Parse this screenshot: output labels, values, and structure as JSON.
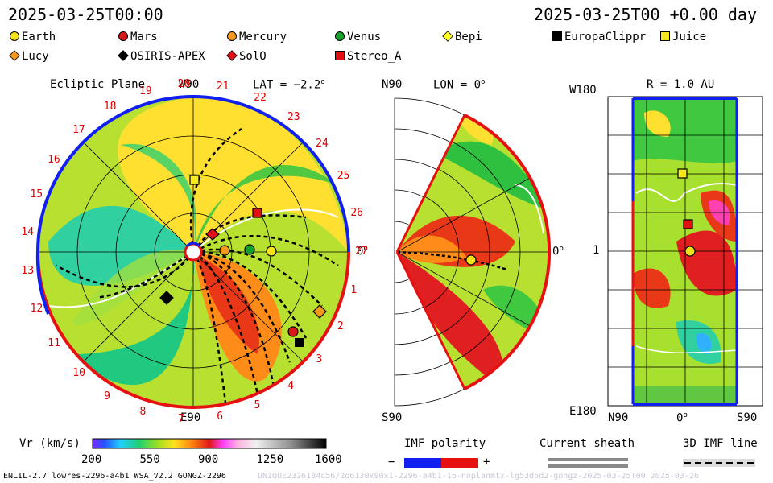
{
  "header": {
    "left_time": "2025-03-25T00:00",
    "right_time": "2025-03-25T00 +0.00 day"
  },
  "legend": [
    {
      "name": "Earth",
      "shape": "circle",
      "color": "#f6e21a"
    },
    {
      "name": "Mars",
      "shape": "circle",
      "color": "#d81818"
    },
    {
      "name": "Mercury",
      "shape": "circle",
      "color": "#f39a1c"
    },
    {
      "name": "Venus",
      "shape": "circle",
      "color": "#14a02a"
    },
    {
      "name": "Bepi",
      "shape": "diamond",
      "color": "#ffff22"
    },
    {
      "name": "EuropaClippr",
      "shape": "square",
      "color": "#000000"
    },
    {
      "name": "Juice",
      "shape": "square",
      "color": "#f8e820"
    },
    {
      "name": "Lucy",
      "shape": "diamond",
      "color": "#f39a1c"
    },
    {
      "name": "OSIRIS-APEX",
      "shape": "diamond",
      "color": "#000000"
    },
    {
      "name": "SolO",
      "shape": "diamond",
      "color": "#e0101a"
    },
    {
      "name": "Stereo_A",
      "shape": "square",
      "color": "#e01010"
    }
  ],
  "ecliptic": {
    "title": "Ecliptic Plane",
    "lat": "LAT = −2.2",
    "lat_deg": "o",
    "w90": "W90",
    "e90": "E90",
    "zero": "0",
    "zero_deg": "o",
    "carrington": [
      "1",
      "2",
      "3",
      "4",
      "5",
      "6",
      "7",
      "8",
      "9",
      "10",
      "11",
      "12",
      "13",
      "14",
      "15",
      "16",
      "17",
      "18",
      "19",
      "20",
      "21",
      "22",
      "23",
      "24",
      "25",
      "26",
      "27"
    ]
  },
  "meridional": {
    "n90": "N90",
    "s90": "S90",
    "lon": "LON = 0",
    "lon_deg": "o",
    "zero": "0",
    "zero_deg": "o"
  },
  "radial": {
    "title": "R = 1.0 AU",
    "w180": "W180",
    "e180": "E180",
    "one": "1",
    "n90": "N90",
    "zero": "0",
    "zero_deg": "o",
    "s90": "S90"
  },
  "colorbar": {
    "label": "Vr (km/s)",
    "ticks": [
      "200",
      "550",
      "900",
      "1250",
      "1600"
    ]
  },
  "polarity": {
    "title": "IMF polarity",
    "minus": "−",
    "plus": "+"
  },
  "sheath": {
    "title": "Current sheath"
  },
  "imf3d": {
    "title": "3D IMF line"
  },
  "footer": {
    "left": "ENLIL-2.7 lowres-2296-a4b1 WSA_V2.2 GONGZ-2296",
    "right": "UNIQUE2326184c56/2d6130x90x1-2296-a4b1-16-noplanmtx-lg53d5d2-gongz-2025-03-25T00    2025-03-26"
  },
  "colors": {
    "positive_polarity": "#e61010",
    "negative_polarity": "#1020f0"
  }
}
